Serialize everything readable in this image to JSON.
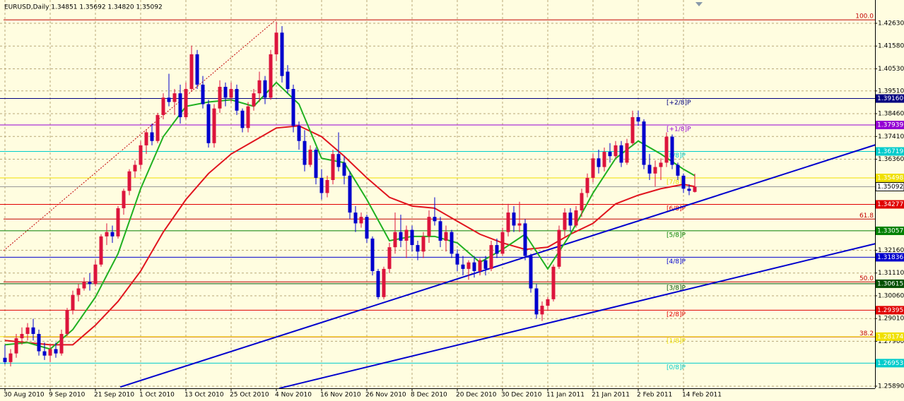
{
  "chart_data": {
    "type": "candlestick",
    "title": "EURUSD,Daily  1.34851 1.35692 1.34820 1.35092",
    "up_color": "#dc143c",
    "down_color": "#0000cd",
    "grid": true,
    "ylim": [
      1.25792,
      1.43705
    ],
    "yticks": [
      {
        "value": 1.4263,
        "label": "1.42630"
      },
      {
        "value": 1.4158,
        "label": "1.41580"
      },
      {
        "value": 1.4053,
        "label": "1.40530"
      },
      {
        "value": 1.3951,
        "label": "1.39510"
      },
      {
        "value": 1.3846,
        "label": "1.38460"
      },
      {
        "value": 1.3741,
        "label": "1.37410"
      },
      {
        "value": 1.3636,
        "label": "1.36360"
      },
      {
        "value": 1.3216,
        "label": "1.32160"
      },
      {
        "value": 1.3111,
        "label": "1.31110"
      },
      {
        "value": 1.3006,
        "label": "1.30060"
      },
      {
        "value": 1.2901,
        "label": "1.29010"
      },
      {
        "value": 1.2796,
        "label": "1.27960"
      },
      {
        "value": 1.2589,
        "label": "1.25890"
      }
    ],
    "xticks": [
      {
        "value": 0,
        "label": "30 Aug 2010"
      },
      {
        "value": 8,
        "label": "9 Sep 2010"
      },
      {
        "value": 16,
        "label": "21 Sep 2010"
      },
      {
        "value": 24,
        "label": "1 Oct 2010"
      },
      {
        "value": 32,
        "label": "13 Oct 2010"
      },
      {
        "value": 40,
        "label": "25 Oct 2010"
      },
      {
        "value": 48,
        "label": "4 Nov 2010"
      },
      {
        "value": 56,
        "label": "16 Nov 2010"
      },
      {
        "value": 64,
        "label": "26 Nov 2010"
      },
      {
        "value": 72,
        "label": "8 Dec 2010"
      },
      {
        "value": 80,
        "label": "20 Dec 2010"
      },
      {
        "value": 88,
        "label": "30 Dec 2010"
      },
      {
        "value": 96,
        "label": "11 Jan 2011"
      },
      {
        "value": 104,
        "label": "21 Jan 2011"
      },
      {
        "value": 112,
        "label": "2 Feb 2011"
      },
      {
        "value": 120,
        "label": "14 Feb 2011"
      }
    ],
    "candles": [
      [
        1.272,
        1.278,
        1.269,
        1.27
      ],
      [
        1.27,
        1.276,
        1.268,
        1.274
      ],
      [
        1.274,
        1.283,
        1.272,
        1.281
      ],
      [
        1.281,
        1.286,
        1.278,
        1.283
      ],
      [
        1.283,
        1.288,
        1.28,
        1.286
      ],
      [
        1.286,
        1.29,
        1.28,
        1.283
      ],
      [
        1.283,
        1.285,
        1.273,
        1.275
      ],
      [
        1.275,
        1.279,
        1.271,
        1.273
      ],
      [
        1.273,
        1.278,
        1.27,
        1.276
      ],
      [
        1.276,
        1.279,
        1.272,
        1.274
      ],
      [
        1.274,
        1.285,
        1.273,
        1.283
      ],
      [
        1.283,
        1.295,
        1.282,
        1.294
      ],
      [
        1.294,
        1.303,
        1.292,
        1.301
      ],
      [
        1.301,
        1.306,
        1.298,
        1.304
      ],
      [
        1.304,
        1.309,
        1.303,
        1.307
      ],
      [
        1.307,
        1.311,
        1.303,
        1.306
      ],
      [
        1.306,
        1.317,
        1.305,
        1.315
      ],
      [
        1.315,
        1.329,
        1.314,
        1.328
      ],
      [
        1.328,
        1.334,
        1.324,
        1.33
      ],
      [
        1.33,
        1.333,
        1.325,
        1.328
      ],
      [
        1.328,
        1.342,
        1.327,
        1.341
      ],
      [
        1.341,
        1.35,
        1.338,
        1.349
      ],
      [
        1.349,
        1.359,
        1.347,
        1.358
      ],
      [
        1.358,
        1.363,
        1.355,
        1.361
      ],
      [
        1.361,
        1.372,
        1.359,
        1.37
      ],
      [
        1.37,
        1.377,
        1.366,
        1.376
      ],
      [
        1.376,
        1.38,
        1.37,
        1.372
      ],
      [
        1.372,
        1.385,
        1.371,
        1.384
      ],
      [
        1.384,
        1.394,
        1.382,
        1.392
      ],
      [
        1.392,
        1.403,
        1.388,
        1.39
      ],
      [
        1.39,
        1.396,
        1.384,
        1.394
      ],
      [
        1.394,
        1.398,
        1.38,
        1.383
      ],
      [
        1.383,
        1.399,
        1.382,
        1.396
      ],
      [
        1.396,
        1.416,
        1.395,
        1.412
      ],
      [
        1.412,
        1.414,
        1.396,
        1.398
      ],
      [
        1.398,
        1.402,
        1.387,
        1.389
      ],
      [
        1.389,
        1.391,
        1.369,
        1.371
      ],
      [
        1.371,
        1.389,
        1.369,
        1.387
      ],
      [
        1.387,
        1.4,
        1.385,
        1.397
      ],
      [
        1.397,
        1.399,
        1.388,
        1.392
      ],
      [
        1.392,
        1.399,
        1.39,
        1.396
      ],
      [
        1.396,
        1.398,
        1.384,
        1.386
      ],
      [
        1.386,
        1.387,
        1.376,
        1.378
      ],
      [
        1.378,
        1.39,
        1.376,
        1.388
      ],
      [
        1.388,
        1.396,
        1.386,
        1.394
      ],
      [
        1.394,
        1.404,
        1.39,
        1.4
      ],
      [
        1.4,
        1.402,
        1.389,
        1.392
      ],
      [
        1.392,
        1.414,
        1.391,
        1.412
      ],
      [
        1.412,
        1.427,
        1.409,
        1.422
      ],
      [
        1.422,
        1.425,
        1.399,
        1.402
      ],
      [
        1.404,
        1.407,
        1.394,
        1.396
      ],
      [
        1.396,
        1.398,
        1.376,
        1.379
      ],
      [
        1.379,
        1.381,
        1.368,
        1.372
      ],
      [
        1.372,
        1.377,
        1.358,
        1.361
      ],
      [
        1.361,
        1.37,
        1.36,
        1.368
      ],
      [
        1.368,
        1.369,
        1.352,
        1.355
      ],
      [
        1.355,
        1.359,
        1.345,
        1.348
      ],
      [
        1.348,
        1.356,
        1.346,
        1.354
      ],
      [
        1.354,
        1.368,
        1.352,
        1.366
      ],
      [
        1.366,
        1.376,
        1.358,
        1.36
      ],
      [
        1.362,
        1.365,
        1.352,
        1.356
      ],
      [
        1.356,
        1.358,
        1.336,
        1.339
      ],
      [
        1.339,
        1.342,
        1.33,
        1.334
      ],
      [
        1.334,
        1.339,
        1.332,
        1.337
      ],
      [
        1.337,
        1.338,
        1.325,
        1.327
      ],
      [
        1.327,
        1.328,
        1.31,
        1.312
      ],
      [
        1.312,
        1.313,
        1.299,
        1.3
      ],
      [
        1.3,
        1.314,
        1.299,
        1.313
      ],
      [
        1.313,
        1.325,
        1.311,
        1.323
      ],
      [
        1.323,
        1.339,
        1.32,
        1.33
      ],
      [
        1.33,
        1.338,
        1.323,
        1.326
      ],
      [
        1.326,
        1.333,
        1.318,
        1.331
      ],
      [
        1.331,
        1.333,
        1.321,
        1.324
      ],
      [
        1.324,
        1.326,
        1.317,
        1.321
      ],
      [
        1.321,
        1.33,
        1.318,
        1.328
      ],
      [
        1.328,
        1.34,
        1.325,
        1.337
      ],
      [
        1.337,
        1.346,
        1.333,
        1.335
      ],
      [
        1.335,
        1.337,
        1.323,
        1.326
      ],
      [
        1.326,
        1.333,
        1.321,
        1.33
      ],
      [
        1.33,
        1.331,
        1.318,
        1.32
      ],
      [
        1.32,
        1.322,
        1.312,
        1.315
      ],
      [
        1.315,
        1.319,
        1.31,
        1.313
      ],
      [
        1.313,
        1.317,
        1.308,
        1.316
      ],
      [
        1.316,
        1.319,
        1.309,
        1.312
      ],
      [
        1.312,
        1.318,
        1.31,
        1.317
      ],
      [
        1.317,
        1.319,
        1.31,
        1.313
      ],
      [
        1.313,
        1.326,
        1.312,
        1.324
      ],
      [
        1.324,
        1.327,
        1.318,
        1.32
      ],
      [
        1.32,
        1.332,
        1.319,
        1.33
      ],
      [
        1.33,
        1.343,
        1.328,
        1.339
      ],
      [
        1.339,
        1.342,
        1.33,
        1.333
      ],
      [
        1.333,
        1.344,
        1.33,
        1.334
      ],
      [
        1.334,
        1.336,
        1.317,
        1.319
      ],
      [
        1.319,
        1.32,
        1.302,
        1.304
      ],
      [
        1.304,
        1.306,
        1.29,
        1.292
      ],
      [
        1.292,
        1.298,
        1.289,
        1.296
      ],
      [
        1.296,
        1.3,
        1.294,
        1.299
      ],
      [
        1.299,
        1.315,
        1.298,
        1.314
      ],
      [
        1.314,
        1.333,
        1.313,
        1.331
      ],
      [
        1.331,
        1.341,
        1.328,
        1.339
      ],
      [
        1.339,
        1.341,
        1.33,
        1.333
      ],
      [
        1.333,
        1.342,
        1.332,
        1.34
      ],
      [
        1.34,
        1.35,
        1.337,
        1.348
      ],
      [
        1.348,
        1.357,
        1.346,
        1.355
      ],
      [
        1.355,
        1.366,
        1.353,
        1.364
      ],
      [
        1.364,
        1.368,
        1.357,
        1.36
      ],
      [
        1.36,
        1.369,
        1.358,
        1.367
      ],
      [
        1.367,
        1.371,
        1.362,
        1.365
      ],
      [
        1.365,
        1.372,
        1.364,
        1.37
      ],
      [
        1.37,
        1.372,
        1.36,
        1.362
      ],
      [
        1.362,
        1.373,
        1.361,
        1.371
      ],
      [
        1.371,
        1.386,
        1.37,
        1.383
      ],
      [
        1.383,
        1.386,
        1.379,
        1.381
      ],
      [
        1.381,
        1.382,
        1.359,
        1.361
      ],
      [
        1.361,
        1.366,
        1.354,
        1.357
      ],
      [
        1.357,
        1.363,
        1.351,
        1.36
      ],
      [
        1.36,
        1.364,
        1.354,
        1.362
      ],
      [
        1.362,
        1.376,
        1.36,
        1.374
      ],
      [
        1.374,
        1.375,
        1.359,
        1.361
      ],
      [
        1.361,
        1.362,
        1.354,
        1.356
      ],
      [
        1.356,
        1.357,
        1.348,
        1.35
      ],
      [
        1.35,
        1.352,
        1.347,
        1.349
      ],
      [
        1.34851,
        1.35692,
        1.3482,
        1.35092
      ]
    ],
    "series": [
      {
        "color": "#e0141e",
        "x": [
          0,
          8,
          12,
          16,
          20,
          24,
          28,
          32,
          36,
          40,
          44,
          48,
          52,
          56,
          60,
          64,
          68,
          72,
          76,
          80,
          84,
          88,
          92,
          96,
          100,
          104,
          108,
          112,
          116,
          120,
          122
        ],
        "values": [
          1.28,
          1.278,
          1.278,
          1.287,
          1.298,
          1.312,
          1.33,
          1.345,
          1.357,
          1.366,
          1.372,
          1.378,
          1.379,
          1.374,
          1.365,
          1.355,
          1.346,
          1.342,
          1.341,
          1.335,
          1.329,
          1.325,
          1.322,
          1.323,
          1.329,
          1.334,
          1.343,
          1.347,
          1.35,
          1.352,
          1.351
        ]
      },
      {
        "color": "#20b020",
        "x": [
          0,
          4,
          8,
          12,
          16,
          20,
          24,
          28,
          32,
          36,
          40,
          44,
          48,
          52,
          56,
          60,
          64,
          68,
          72,
          76,
          80,
          84,
          88,
          92,
          96,
          100,
          104,
          108,
          112,
          116,
          120,
          122
        ],
        "values": [
          1.278,
          1.279,
          1.276,
          1.285,
          1.3,
          1.32,
          1.35,
          1.374,
          1.388,
          1.39,
          1.391,
          1.388,
          1.399,
          1.389,
          1.364,
          1.362,
          1.345,
          1.326,
          1.328,
          1.328,
          1.325,
          1.316,
          1.322,
          1.329,
          1.313,
          1.329,
          1.348,
          1.364,
          1.372,
          1.366,
          1.359,
          1.356
        ]
      }
    ],
    "trendlines": [
      {
        "color": "#0000cd",
        "x": [
          20.4,
          153.9
        ],
        "values": [
          1.2585,
          1.3702
        ]
      },
      {
        "color": "#0000cd",
        "x": [
          48.5,
          153.9
        ],
        "values": [
          1.2579,
          1.3246
        ]
      }
    ],
    "fib": {
      "color": "#c00000",
      "x": [
        -0.25,
        47.9
      ],
      "values": [
        1.3214,
        1.4279
      ],
      "levels": [
        {
          "label": "100.0",
          "value": 1.4279
        },
        {
          "label": "61.8",
          "value": 1.336
        },
        {
          "label": "50.0",
          "value": 1.307
        },
        {
          "label": "38.2",
          "value": 1.2816
        }
      ]
    },
    "levels": [
      {
        "label": "[+2/8]P",
        "value": 1.3916,
        "price_label": "1.39160",
        "color": "#000080"
      },
      {
        "label": "[+1/8]P",
        "value": 1.37939,
        "price_label": "1.37939",
        "color": "#9400d3"
      },
      {
        "label": "[8/8]P",
        "value": 1.36719,
        "price_label": "1.36719",
        "color": "#00cccc"
      },
      {
        "label": "[7/8]P",
        "value": 1.35498,
        "price_label": "1.35498",
        "color": "#f0e000"
      },
      {
        "label": "[6/8]P",
        "value": 1.34277,
        "price_label": "1.34277",
        "color": "#e00000"
      },
      {
        "label": "[5/8]P",
        "value": 1.33057,
        "price_label": "1.33057",
        "color": "#008000"
      },
      {
        "label": "[4/8]P",
        "value": 1.31836,
        "price_label": "1.31836",
        "color": "#0000cd"
      },
      {
        "label": "[3/8]P",
        "value": 1.30615,
        "price_label": "1.30615",
        "color": "#005000"
      },
      {
        "label": "[2/8]P",
        "value": 1.29395,
        "price_label": "1.29395",
        "color": "#e00000"
      },
      {
        "label": "[1/8]P",
        "value": 1.28174,
        "price_label": "1.28174",
        "color": "#f0e000"
      },
      {
        "label": "[0/8]P",
        "value": 1.26953,
        "price_label": "1.26953",
        "color": "#00cccc"
      }
    ],
    "current_price": {
      "value": 1.35092,
      "label": "1.35092"
    }
  }
}
